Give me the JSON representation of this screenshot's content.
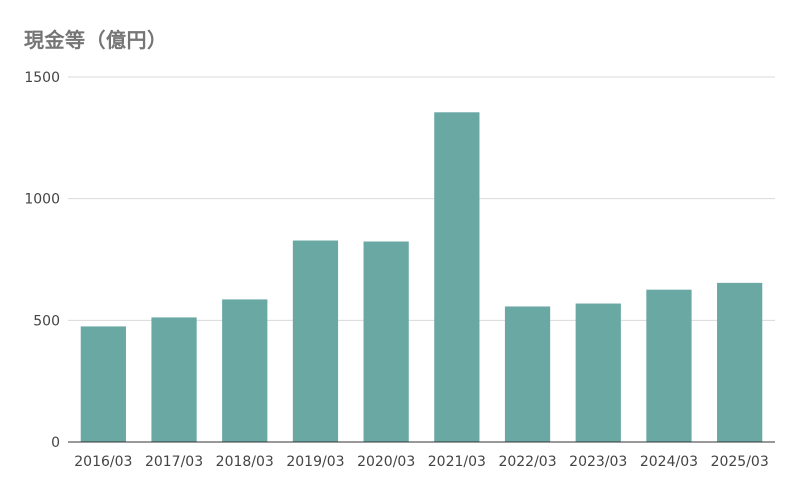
{
  "chart_data": {
    "type": "bar",
    "title": "現金等（億円）",
    "xlabel": "",
    "ylabel": "",
    "categories": [
      "2016/03",
      "2017/03",
      "2018/03",
      "2019/03",
      "2020/03",
      "2021/03",
      "2022/03",
      "2023/03",
      "2024/03",
      "2025/03"
    ],
    "values": [
      475,
      512,
      586,
      828,
      824,
      1355,
      557,
      569,
      626,
      654
    ],
    "ylim": [
      0,
      1500
    ],
    "yticks": [
      "0",
      "500",
      "1000",
      "1500"
    ],
    "grid": true,
    "legend": "none",
    "bar_color": "#6aa8a4"
  }
}
